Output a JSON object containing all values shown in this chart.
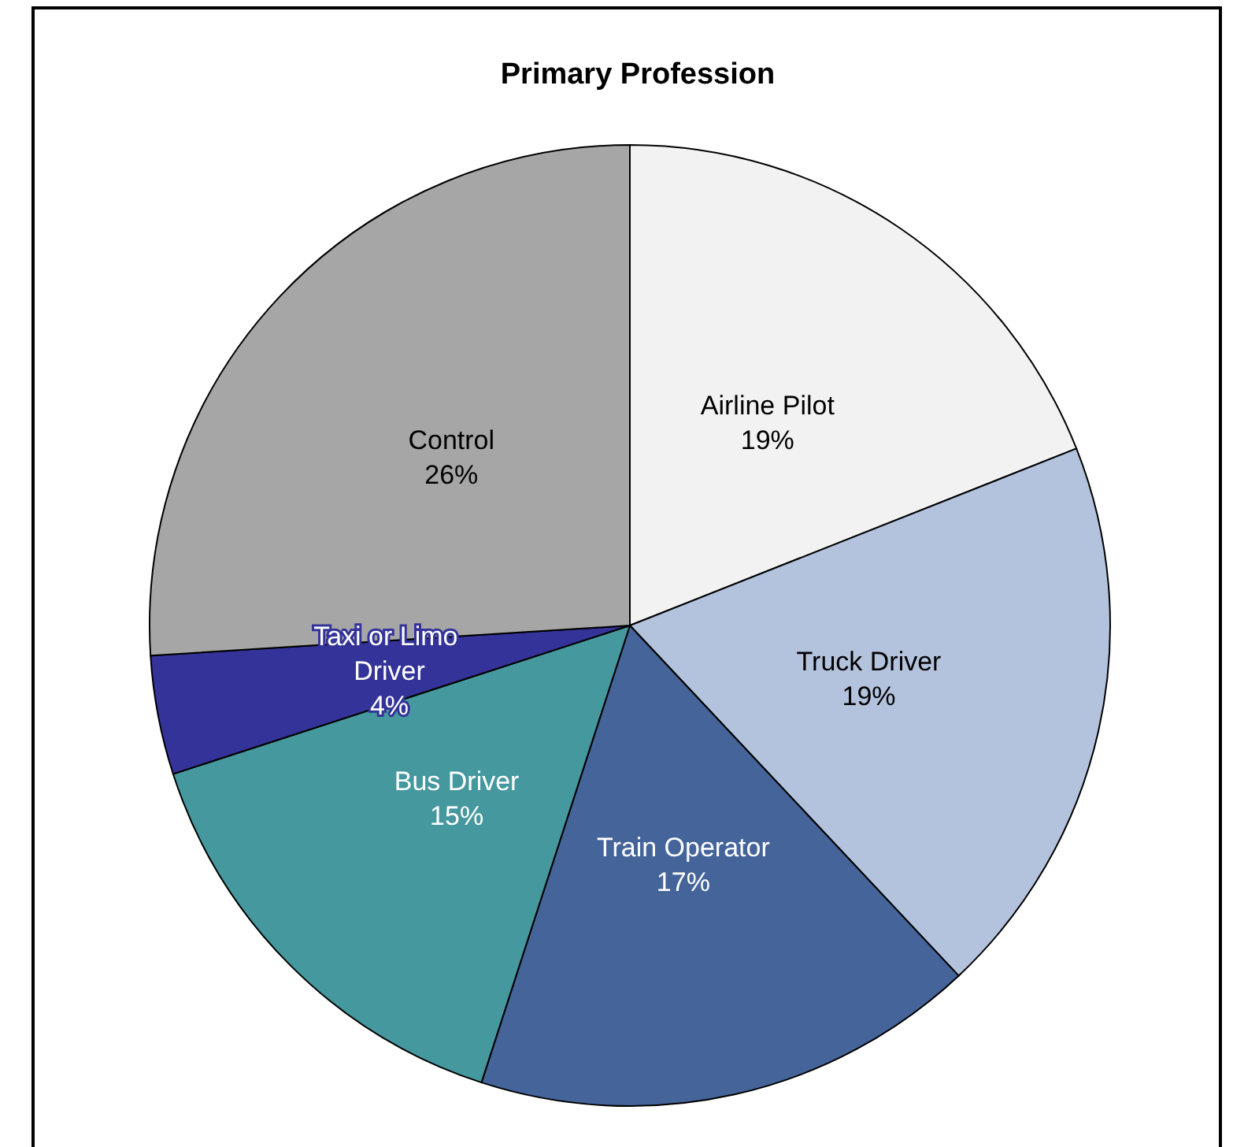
{
  "chart_data": {
    "type": "pie",
    "title": "Primary Profession",
    "categories": [
      "Airline Pilot",
      "Truck Driver",
      "Train Operator",
      "Bus Driver",
      "Taxi or Limo Driver",
      "Control"
    ],
    "values": [
      19,
      19,
      17,
      15,
      4,
      26
    ],
    "colors": [
      "#f2f2f2",
      "#b4c3dd",
      "#44649a",
      "#45989e",
      "#343399",
      "#a6a6a6"
    ],
    "value_labels": [
      "19%",
      "19%",
      "17%",
      "15%",
      "4%",
      "26%"
    ],
    "legend": false
  }
}
